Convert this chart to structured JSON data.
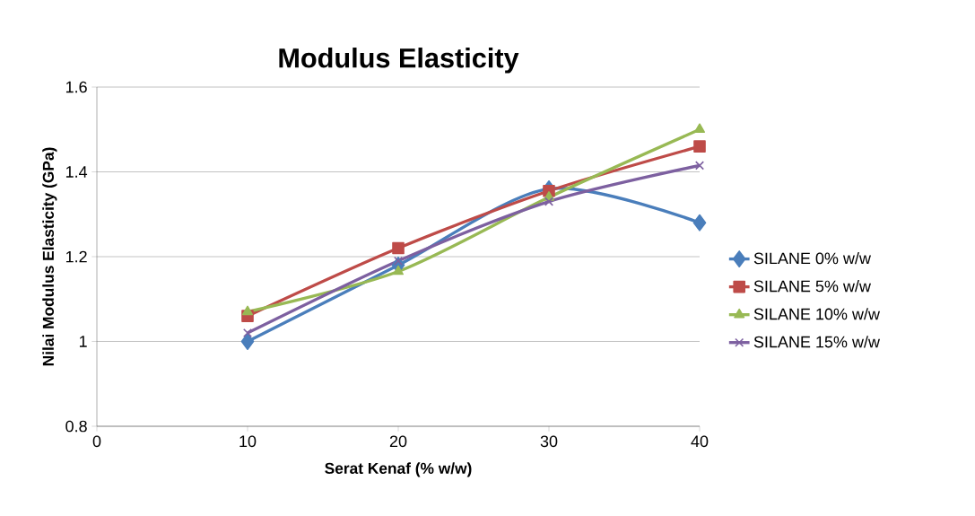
{
  "chart_data": {
    "type": "line",
    "title": "Modulus Elasticity",
    "xlabel": "Serat Kenaf (% w/w)",
    "ylabel": "Nilai Modulus Elasticity (GPa)",
    "x": [
      10,
      20,
      30,
      40
    ],
    "xlim": [
      0,
      40
    ],
    "xticks": [
      0,
      10,
      20,
      30,
      40
    ],
    "ylim": [
      0.8,
      1.6
    ],
    "yticks": [
      0.8,
      1,
      1.2,
      1.4,
      1.6
    ],
    "grid": "y",
    "legend": "right",
    "line_style": "solid",
    "series": [
      {
        "name": "SILANE 0% w/w",
        "color": "#4a7ebb",
        "marker": "diamond",
        "values": [
          1.0,
          1.18,
          1.36,
          1.28
        ]
      },
      {
        "name": "SILANE 5% w/w",
        "color": "#be4b48",
        "marker": "square",
        "values": [
          1.06,
          1.22,
          1.355,
          1.46
        ]
      },
      {
        "name": "SILANE 10% w/w",
        "color": "#98b954",
        "marker": "triangle",
        "values": [
          1.07,
          1.165,
          1.34,
          1.5
        ]
      },
      {
        "name": "SILANE 15% w/w",
        "color": "#7d60a0",
        "marker": "cross",
        "values": [
          1.02,
          1.19,
          1.33,
          1.415
        ]
      }
    ]
  }
}
